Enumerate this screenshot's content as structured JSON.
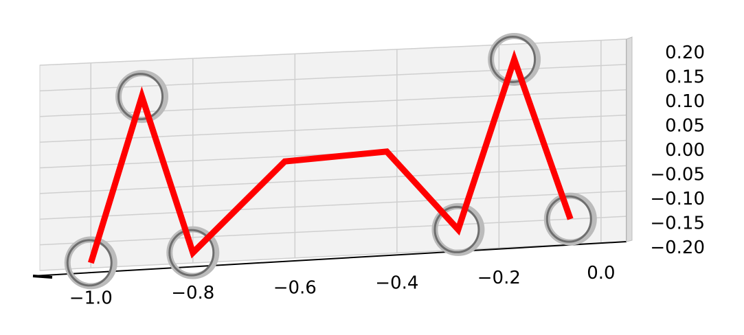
{
  "chart_data": {
    "type": "line",
    "projection": "3d",
    "title": "",
    "xlabel": "",
    "ylabel": "",
    "zlabel": "",
    "xlim": [
      -1.1,
      0.05
    ],
    "zlim": [
      -0.2,
      0.2
    ],
    "grid": true,
    "x_ticks": [
      "−1.0",
      "−0.8",
      "−0.6",
      "−0.4",
      "−0.2",
      "0.0"
    ],
    "z_ticks": [
      "0.20",
      "0.15",
      "0.10",
      "0.05",
      "0.00",
      "−0.05",
      "−0.10",
      "−0.15",
      "−0.20"
    ],
    "series": [
      {
        "color": "#ff0000",
        "style": "line",
        "points": [
          {
            "x": -1.0,
            "z": -0.19
          },
          {
            "x": -0.9,
            "z": 0.13
          },
          {
            "x": -0.8,
            "z": -0.18
          },
          {
            "x": -0.62,
            "z": -0.01
          },
          {
            "x": -0.42,
            "z": 0.0
          },
          {
            "x": -0.28,
            "z": -0.16
          },
          {
            "x": -0.17,
            "z": 0.17
          },
          {
            "x": -0.06,
            "z": -0.15
          }
        ]
      },
      {
        "color": "#808080",
        "style": "circle-markers",
        "points": [
          {
            "x": -1.0,
            "z": -0.19
          },
          {
            "x": -0.9,
            "z": 0.13
          },
          {
            "x": -0.8,
            "z": -0.18
          },
          {
            "x": -0.28,
            "z": -0.16
          },
          {
            "x": -0.17,
            "z": 0.17
          },
          {
            "x": -0.06,
            "z": -0.15
          }
        ]
      }
    ]
  }
}
